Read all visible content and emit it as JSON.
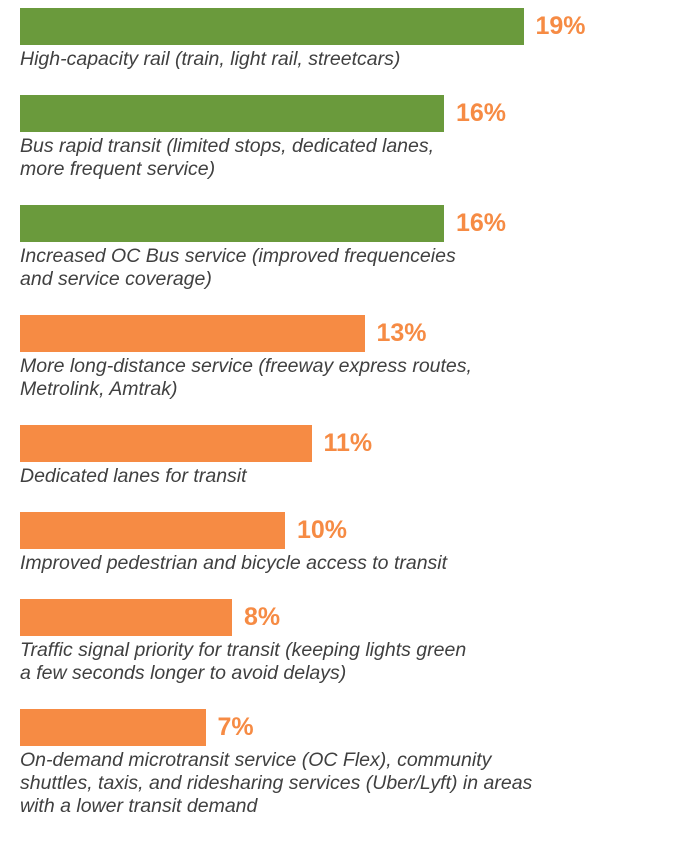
{
  "chart_data": {
    "type": "bar",
    "orientation": "horizontal",
    "categories": [
      [
        "High-capacity rail (train, light rail, streetcars)"
      ],
      [
        "Bus rapid transit (limited stops, dedicated lanes,",
        "more frequent service)"
      ],
      [
        "Increased OC Bus service (improved frequenceies",
        "and service coverage)"
      ],
      [
        "More long-distance service (freeway express routes,",
        "Metrolink, Amtrak)"
      ],
      [
        "Dedicated lanes for transit"
      ],
      [
        "Improved pedestrian and bicycle access to transit"
      ],
      [
        "Traffic signal priority for transit (keeping lights green",
        "a few seconds longer to avoid delays)"
      ],
      [
        "On-demand microtransit service (OC Flex), community",
        "shuttles, taxis, and ridesharing services (Uber/Lyft) in areas",
        "with a lower transit demand"
      ]
    ],
    "values": [
      19,
      16,
      16,
      13,
      11,
      10,
      8,
      7
    ],
    "value_labels": [
      "19%",
      "16%",
      "16%",
      "13%",
      "11%",
      "10%",
      "8%",
      "7%"
    ],
    "colors": [
      "#6a9a3c",
      "#6a9a3c",
      "#6a9a3c",
      "#f68b44",
      "#f68b44",
      "#f68b44",
      "#f68b44",
      "#f68b44"
    ],
    "label_color": "#f68b44"
  }
}
